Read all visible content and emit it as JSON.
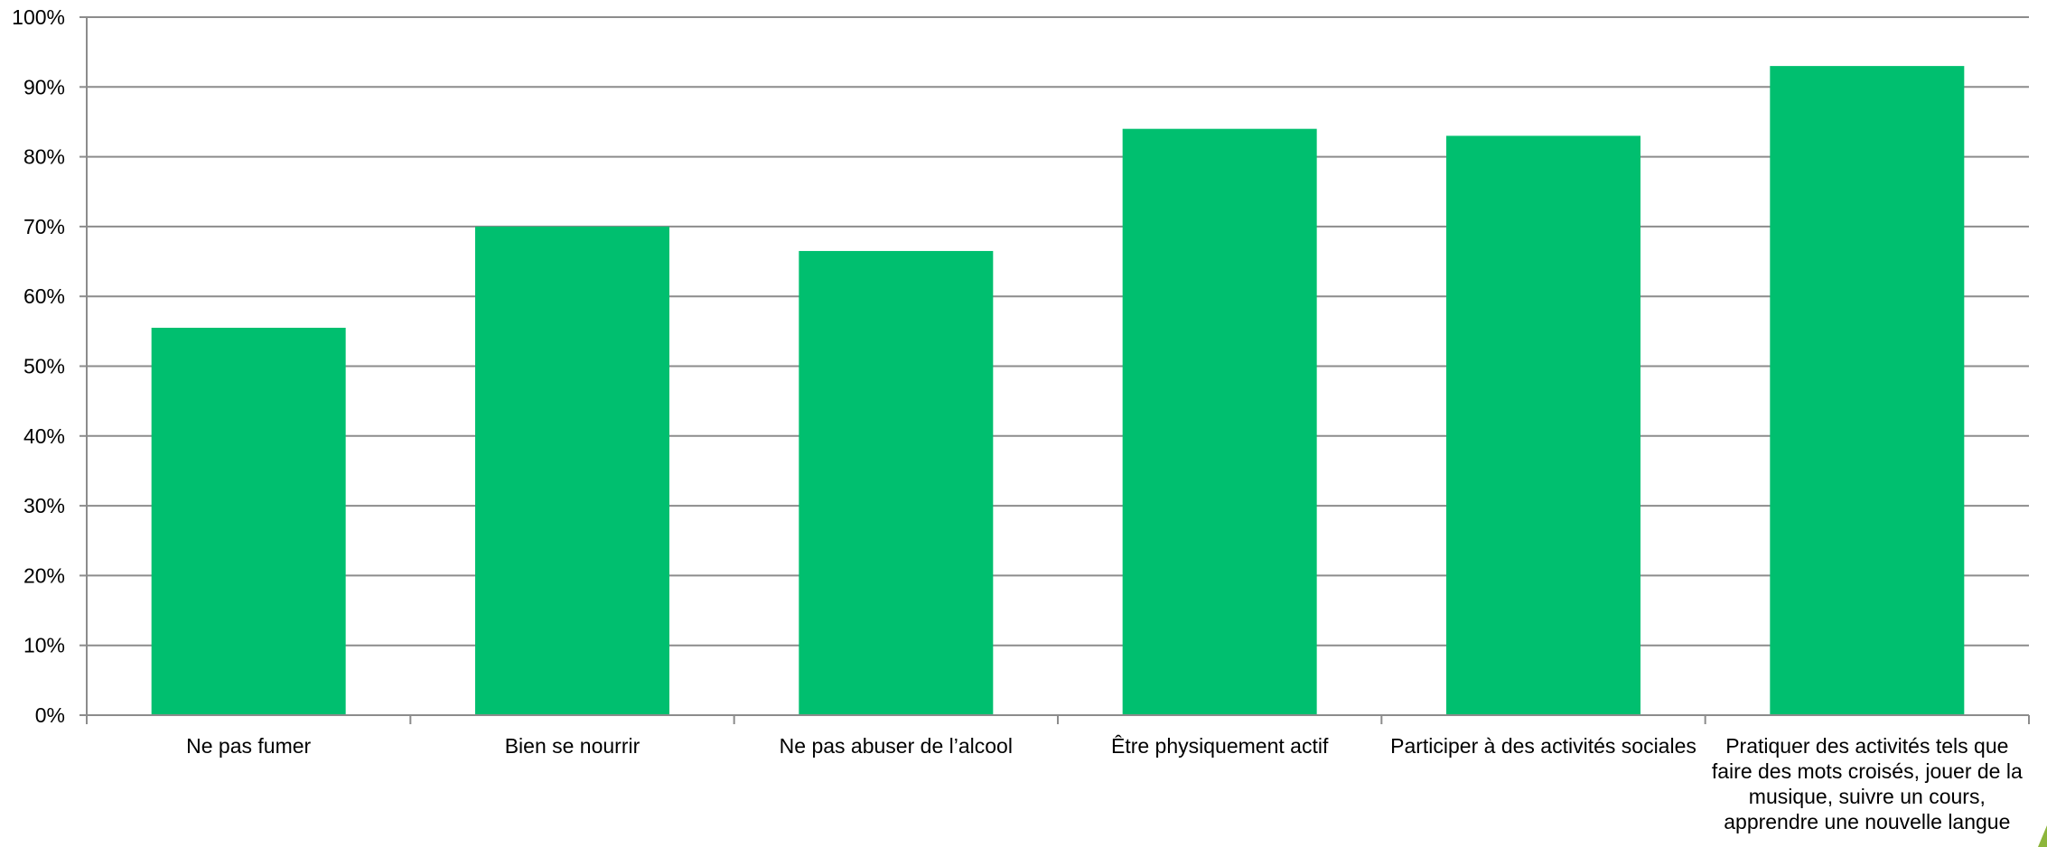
{
  "chart_data": {
    "type": "bar",
    "categories": [
      "Ne pas fumer",
      "Bien se nourrir",
      "Ne pas abuser de l’alcool",
      "Être physiquement actif",
      "Participer à des activités sociales",
      "Pratiquer des activités tels que faire des mots croisés, jouer de la musique, suivre un cours, apprendre une nouvelle langue"
    ],
    "values": [
      55.5,
      70,
      66.5,
      84,
      83,
      93
    ],
    "ylim": [
      0,
      100
    ],
    "yticks": [
      "0%",
      "10%",
      "20%",
      "30%",
      "40%",
      "50%",
      "60%",
      "70%",
      "80%",
      "90%",
      "100%"
    ],
    "ylabel": "",
    "xlabel": "",
    "grid": true,
    "legend": "none",
    "bar_color": "#00BF6F",
    "grid_color": "#8C8C8C"
  }
}
